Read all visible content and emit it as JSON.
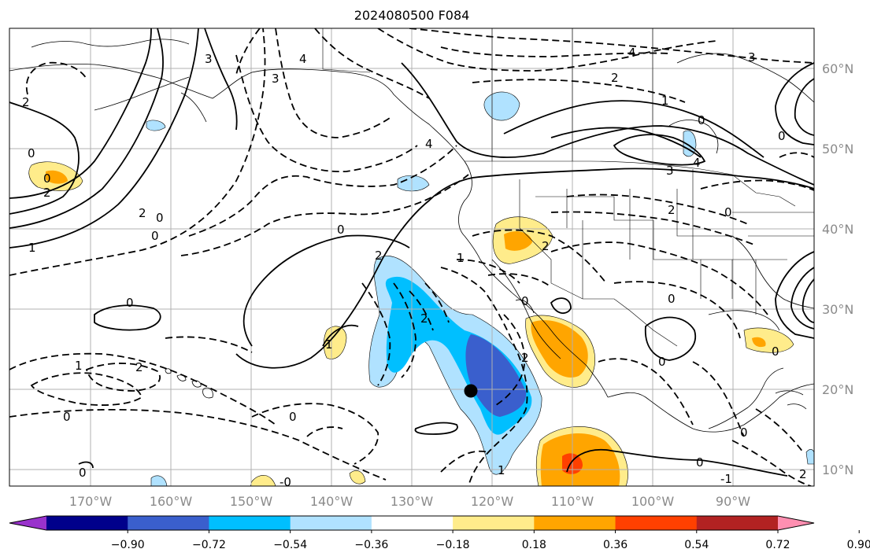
{
  "title": "2024080500 F084",
  "map": {
    "lon_ticks": [
      "170°W",
      "160°W",
      "150°W",
      "140°W",
      "130°W",
      "120°W",
      "110°W",
      "100°W",
      "90°W"
    ],
    "lat_ticks": [
      "60°N",
      "50°N",
      "40°N",
      "30°N",
      "20°N",
      "10°N"
    ],
    "extent": {
      "lon": [
        -180,
        -80
      ],
      "lat": [
        8,
        65
      ]
    },
    "contour_labels": [
      "0",
      "1",
      "2",
      "3",
      "4",
      "-0",
      "-1"
    ],
    "marker": {
      "name": "black-dot",
      "lon": -122.8,
      "lat": 19.8
    }
  },
  "colorbar": {
    "tick_labels": [
      "−0.90",
      "−0.72",
      "−0.54",
      "−0.36",
      "−0.18",
      "0.18",
      "0.36",
      "0.54",
      "0.72",
      "0.90"
    ],
    "colors": [
      "#9932cc",
      "#00008b",
      "#3a5fcd",
      "#00bfff",
      "#b0e2ff",
      "#ffffff",
      "#ffec8b",
      "#ffa500",
      "#ff4000",
      "#b22222",
      "#ff8fb1"
    ]
  },
  "colors": {
    "grid": "#b0b0b0",
    "contour": "#000000",
    "coast": "#000000",
    "tick_text": "#8a8a8a"
  }
}
